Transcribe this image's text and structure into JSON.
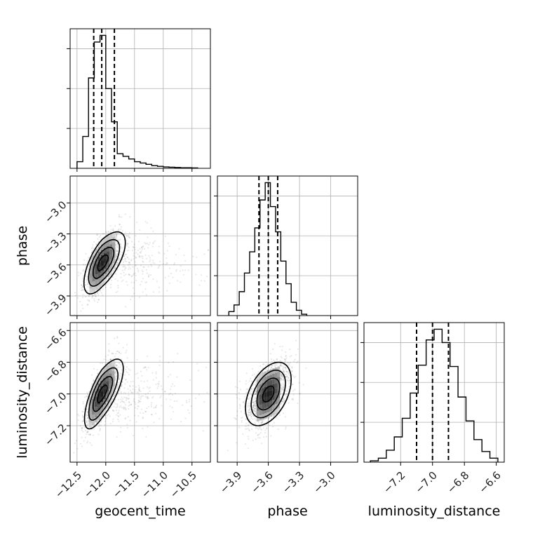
{
  "chart_data": {
    "type": "corner",
    "parameters": [
      "geocent_time",
      "phase",
      "luminosity_distance"
    ],
    "xlabels": [
      "geocent_time",
      "phase",
      "luminosity_distance"
    ],
    "ylabels": [
      "",
      "phase",
      "luminosity_distance"
    ],
    "ranges": {
      "geocent_time": [
        -12.62,
        -10.18
      ],
      "phase": [
        -4.09,
        -2.74
      ],
      "luminosity_distance": [
        -7.43,
        -6.55
      ]
    },
    "ticks": {
      "geocent_time": [
        -12.5,
        -12.0,
        -11.5,
        -11.0,
        -10.5
      ],
      "phase": [
        -3.9,
        -3.6,
        -3.3,
        -3.0
      ],
      "luminosity_distance": [
        -7.2,
        -7.0,
        -6.8,
        -6.6
      ]
    },
    "tick_labels": {
      "geocent_time": [
        "−12.5",
        "−12.0",
        "−11.5",
        "−11.0",
        "−10.5"
      ],
      "phase": [
        "−3.9",
        "−3.6",
        "−3.3",
        "−3.0"
      ],
      "luminosity_distance": [
        "−7.2",
        "−7.0",
        "−6.8",
        "−6.6"
      ]
    },
    "quantiles": {
      "geocent_time": [
        -12.21,
        -12.07,
        -11.85
      ],
      "phase": [
        -3.69,
        -3.6,
        -3.51
      ],
      "luminosity_distance": [
        -7.1,
        -7.0,
        -6.9
      ]
    },
    "histograms": {
      "geocent_time": {
        "edges": [
          -12.5,
          -12.4,
          -12.3,
          -12.2,
          -12.1,
          -12.0,
          -11.9,
          -11.8,
          -11.7,
          -11.6,
          -11.5,
          -11.4,
          -11.3,
          -11.2,
          -11.1,
          -11.0,
          -10.9,
          -10.8,
          -10.7,
          -10.6,
          -10.5,
          -10.4
        ],
        "counts": [
          0.05,
          0.24,
          0.68,
          0.95,
          1.0,
          0.6,
          0.35,
          0.11,
          0.09,
          0.07,
          0.05,
          0.04,
          0.03,
          0.02,
          0.015,
          0.01,
          0.008,
          0.006,
          0.004,
          0.004,
          0.003
        ]
      },
      "phase": {
        "edges": [
          -3.98,
          -3.93,
          -3.88,
          -3.83,
          -3.78,
          -3.73,
          -3.68,
          -3.63,
          -3.58,
          -3.53,
          -3.48,
          -3.43,
          -3.38,
          -3.33,
          -3.28,
          -3.23
        ],
        "counts": [
          0.03,
          0.08,
          0.18,
          0.32,
          0.48,
          0.66,
          0.87,
          1.0,
          0.82,
          0.63,
          0.41,
          0.24,
          0.1,
          0.04,
          0.01
        ]
      },
      "luminosity_distance": {
        "edges": [
          -7.39,
          -7.34,
          -7.29,
          -7.24,
          -7.19,
          -7.14,
          -7.09,
          -7.04,
          -6.99,
          -6.94,
          -6.89,
          -6.84,
          -6.79,
          -6.74,
          -6.69,
          -6.64,
          -6.59
        ],
        "counts": [
          0.01,
          0.03,
          0.09,
          0.19,
          0.33,
          0.52,
          0.73,
          0.92,
          1.0,
          0.9,
          0.72,
          0.49,
          0.31,
          0.17,
          0.08,
          0.03
        ]
      }
    },
    "pairs": [
      {
        "x": "geocent_time",
        "y": "phase",
        "center": [
          -12.06,
          -3.58
        ],
        "sigma": [
          0.16,
          0.15
        ],
        "corr": 0.65
      },
      {
        "x": "geocent_time",
        "y": "luminosity_distance",
        "center": [
          -12.07,
          -7.0
        ],
        "sigma": [
          0.15,
          0.11
        ],
        "corr": 0.72
      },
      {
        "x": "phase",
        "y": "luminosity_distance",
        "center": [
          -3.6,
          -7.0
        ],
        "sigma": [
          0.11,
          0.1
        ],
        "corr": 0.45
      }
    ],
    "grid": true
  }
}
